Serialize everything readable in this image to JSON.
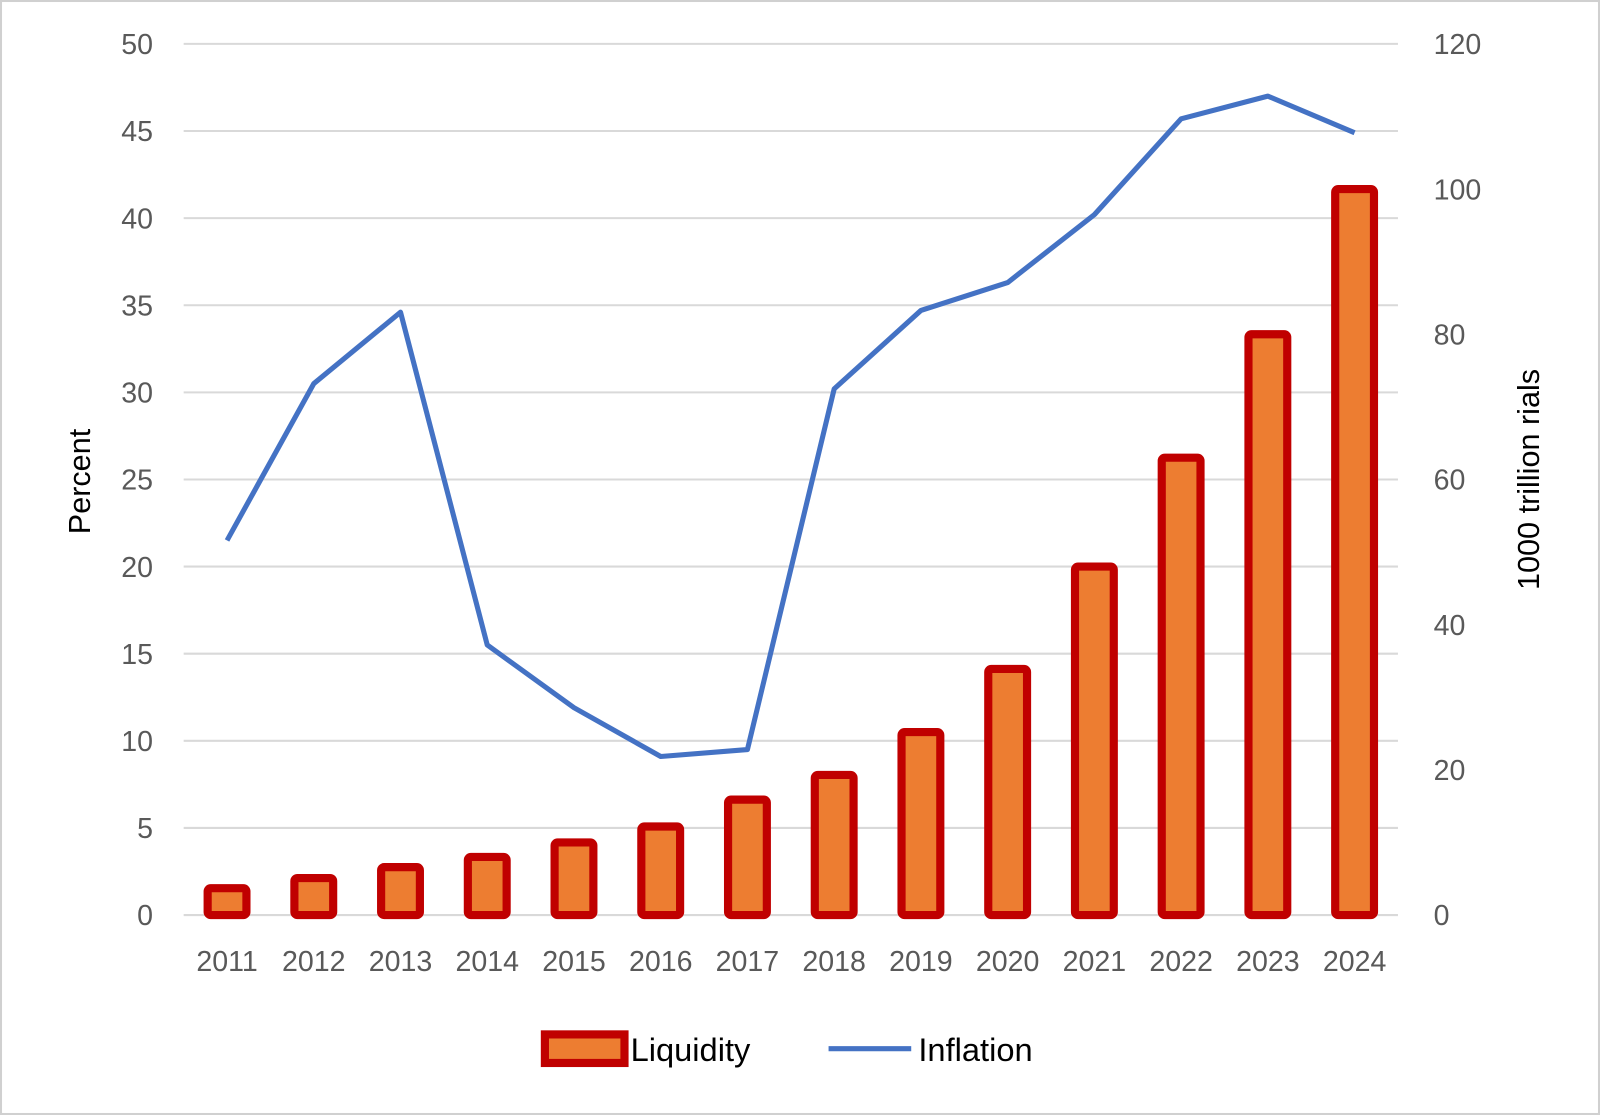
{
  "chart_data": {
    "type": "bar+line",
    "categories": [
      "2011",
      "2012",
      "2013",
      "2014",
      "2015",
      "2016",
      "2017",
      "2018",
      "2019",
      "2020",
      "2021",
      "2022",
      "2023",
      "2024"
    ],
    "series": [
      {
        "name": "Liquidity",
        "type": "bar",
        "axis": "right",
        "values": [
          3.7,
          5.1,
          6.6,
          8.0,
          10.0,
          12.2,
          15.9,
          19.3,
          25.2,
          33.9,
          48.0,
          63.0,
          80.0,
          100.0
        ],
        "fill": "#ED7D31",
        "stroke": "#C00000"
      },
      {
        "name": "Inflation",
        "type": "line",
        "axis": "left",
        "values": [
          21.5,
          30.5,
          34.6,
          15.5,
          11.9,
          9.1,
          9.5,
          30.2,
          34.7,
          36.3,
          40.2,
          45.7,
          47.0,
          44.9
        ],
        "color": "#4472C4"
      }
    ],
    "left_axis": {
      "label": "Percent",
      "ylim": [
        0,
        50
      ],
      "ticks": [
        0,
        5,
        10,
        15,
        20,
        25,
        30,
        35,
        40,
        45,
        50
      ]
    },
    "right_axis": {
      "label": "1000 trillion rials",
      "ylim": [
        0,
        120
      ],
      "ticks": [
        0,
        20,
        40,
        60,
        80,
        100,
        120
      ]
    },
    "grid": true,
    "legend": {
      "placement": "bottom",
      "entries": [
        "Liquidity",
        "Inflation"
      ]
    }
  }
}
